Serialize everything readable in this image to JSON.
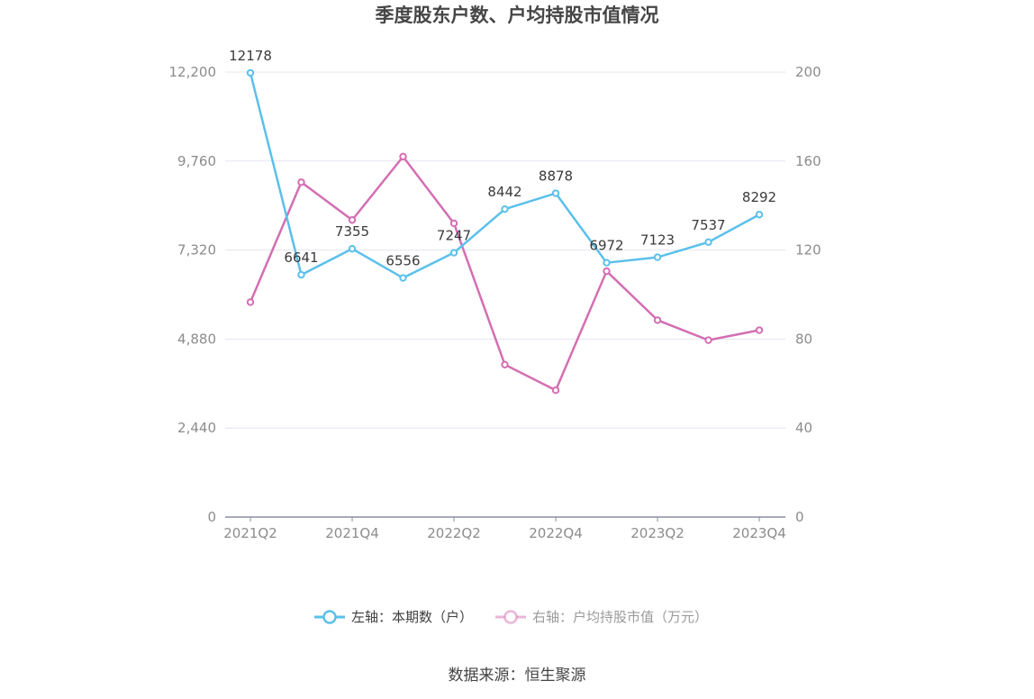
{
  "chart_data": {
    "type": "line",
    "title": "季度股东户数、户均持股市值情况",
    "categories": [
      "2021Q2",
      "2021Q3",
      "2021Q4",
      "2022Q1",
      "2022Q2",
      "2022Q3",
      "2022Q4",
      "2023Q1",
      "2023Q2",
      "2023Q3",
      "2023Q4"
    ],
    "x_tick_labels": [
      "2021Q2",
      "2021Q4",
      "2022Q2",
      "2022Q4",
      "2023Q2",
      "2023Q4"
    ],
    "left_axis": {
      "ylim": [
        0,
        12200
      ],
      "ticks": [
        "0",
        "2,440",
        "4,880",
        "7,320",
        "9,760",
        "12,200"
      ],
      "tick_values": [
        0,
        2440,
        4880,
        7320,
        9760,
        12200
      ]
    },
    "right_axis": {
      "ylim": [
        0,
        200
      ],
      "ticks": [
        "0",
        "40",
        "80",
        "120",
        "160",
        "200"
      ],
      "tick_values": [
        0,
        40,
        80,
        120,
        160,
        200
      ]
    },
    "grid": true,
    "legend_position": "bottom",
    "series": [
      {
        "name": "左轴：本期数（户）",
        "axis": "left",
        "color": "#5bc0eb",
        "values": [
          12178,
          6641,
          7355,
          6556,
          7247,
          8442,
          8878,
          6972,
          7123,
          7537,
          8292
        ],
        "labels": [
          "12178",
          "6641",
          "7355",
          "6556",
          "7247",
          "8442",
          "8878",
          "6972",
          "7123",
          "7537",
          "8292"
        ]
      },
      {
        "name": "右轴：户均持股市值（万元）",
        "axis": "right",
        "color": "#d46eb3",
        "values": [
          96.6,
          150.5,
          133.5,
          162.0,
          132.0,
          68.5,
          57.0,
          110.5,
          88.5,
          79.5,
          84.0
        ]
      }
    ],
    "source": "数据来源：恒生聚源"
  }
}
